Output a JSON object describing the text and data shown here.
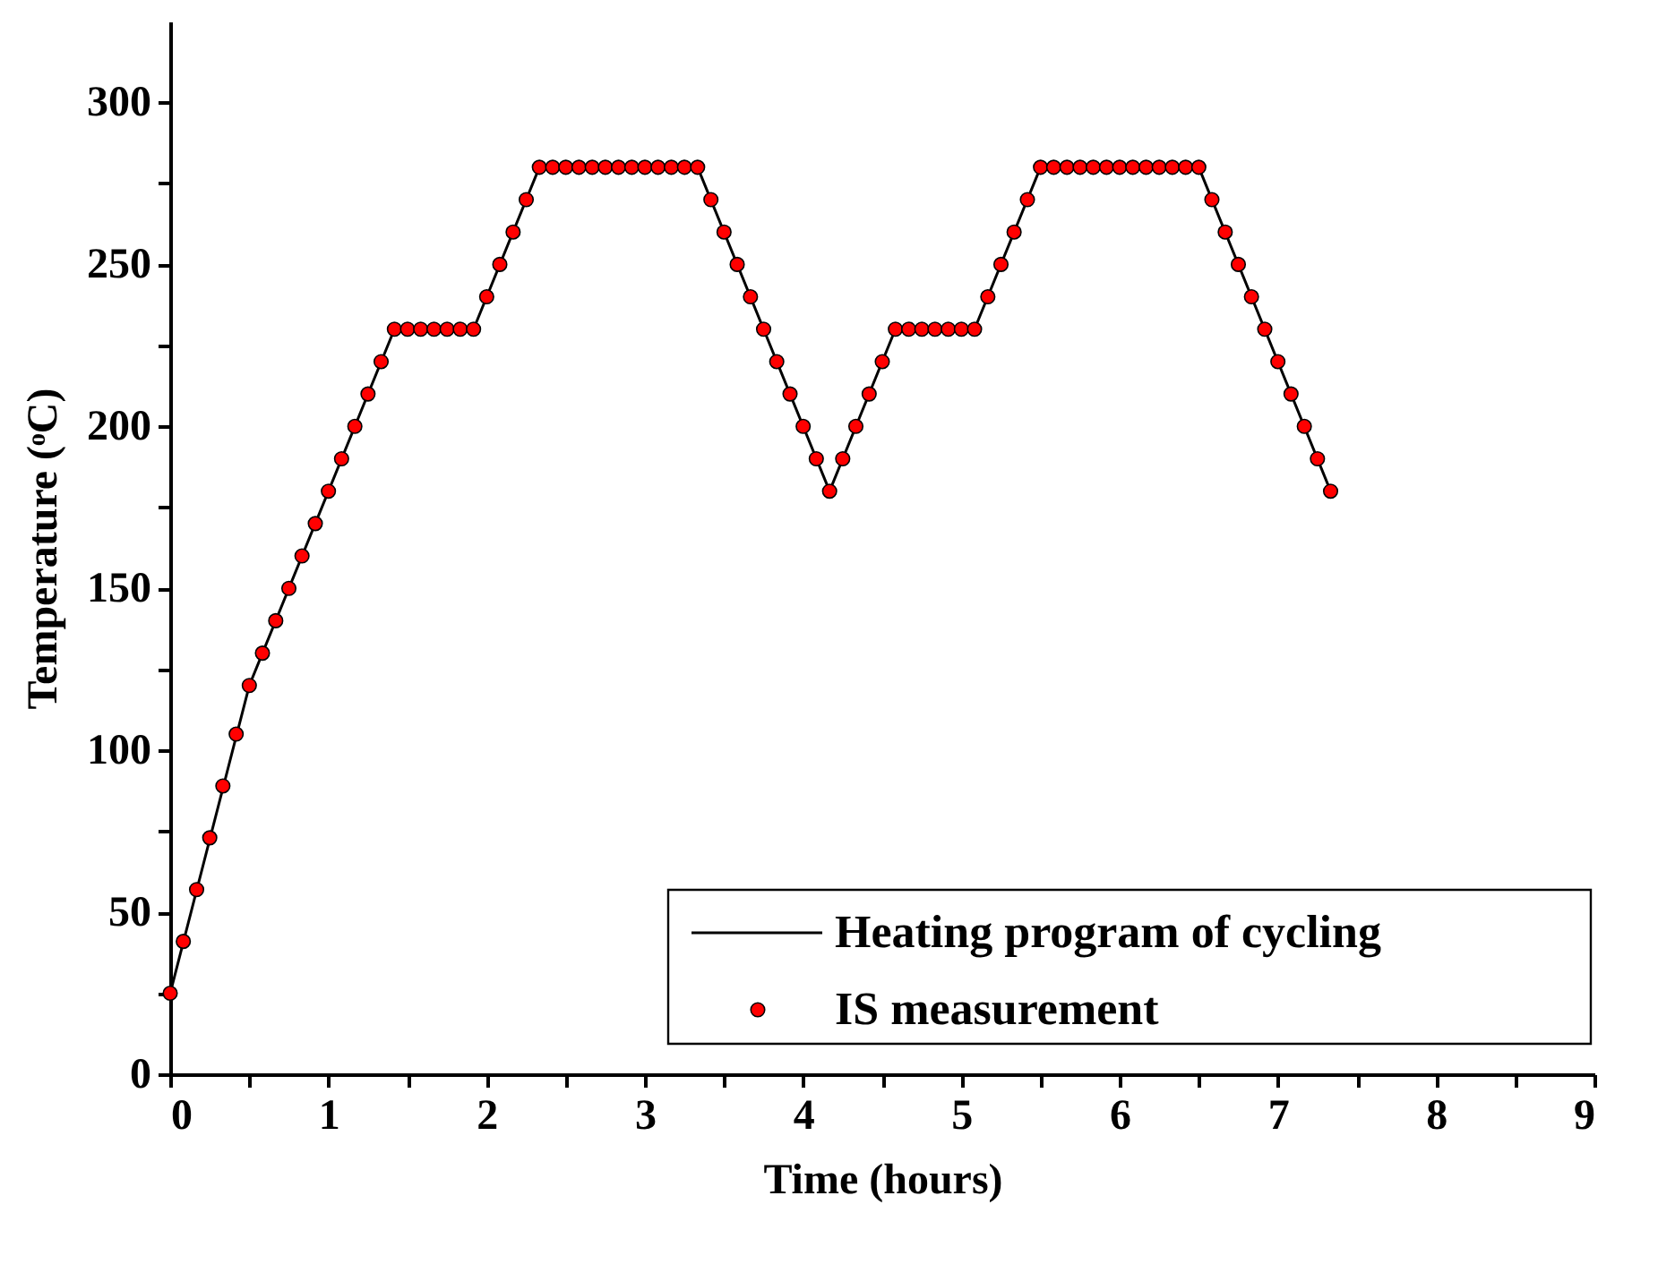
{
  "chart_data": {
    "type": "line",
    "xlabel": "Time (hours)",
    "ylabel": "Temperature (ᵒC)",
    "xlim": [
      0,
      9
    ],
    "ylim": [
      0,
      325
    ],
    "xticks": [
      0,
      {
        "value": 0.5,
        "label": null
      },
      1,
      {
        "value": 1.5,
        "label": null
      },
      2,
      {
        "value": 2.5,
        "label": null
      },
      3,
      {
        "value": 3.5,
        "label": null
      },
      4,
      {
        "value": 4.5,
        "label": null
      },
      5,
      {
        "value": 5.5,
        "label": null
      },
      6,
      {
        "value": 6.5,
        "label": null
      },
      7,
      {
        "value": 7.5,
        "label": null
      },
      8,
      {
        "value": 8.5,
        "label": null
      },
      9
    ],
    "yticks": [
      0,
      {
        "value": 25,
        "label": null
      },
      50,
      {
        "value": 75,
        "label": null
      },
      100,
      {
        "value": 125,
        "label": null
      },
      150,
      {
        "value": 175,
        "label": null
      },
      200,
      {
        "value": 225,
        "label": null
      },
      250,
      {
        "value": 275,
        "label": null
      },
      300
    ],
    "grid": false,
    "legend": "bottom right",
    "series": [
      {
        "name": "Heating program of cycling",
        "color": "#000000",
        "line_style": "solid",
        "x": [
          0,
          0.5,
          1.417,
          1.917,
          2.333,
          3.333,
          4.167,
          4.583,
          5.083,
          5.5,
          6.5,
          7.333
        ],
        "values": [
          25,
          120,
          230,
          230,
          280,
          280,
          180,
          230,
          230,
          280,
          280,
          180
        ]
      },
      {
        "name": "IS measurement",
        "type": "scatter",
        "color": "#ff0000",
        "marker": "circle",
        "x": [
          0,
          0.083,
          0.167,
          0.25,
          0.333,
          0.417,
          0.5,
          0.583,
          0.667,
          0.75,
          0.833,
          0.917,
          1,
          1.083,
          1.167,
          1.25,
          1.333,
          1.417,
          1.5,
          1.583,
          1.667,
          1.75,
          1.833,
          1.917,
          2,
          2.083,
          2.167,
          2.25,
          2.333,
          2.417,
          2.5,
          2.583,
          2.667,
          2.75,
          2.833,
          2.917,
          3,
          3.083,
          3.167,
          3.25,
          3.333,
          3.417,
          3.5,
          3.583,
          3.667,
          3.75,
          3.833,
          3.917,
          4,
          4.083,
          4.167,
          4.25,
          4.333,
          4.417,
          4.5,
          4.583,
          4.667,
          4.75,
          4.833,
          4.917,
          5,
          5.083,
          5.167,
          5.25,
          5.333,
          5.417,
          5.5,
          5.583,
          5.667,
          5.75,
          5.833,
          5.917,
          6,
          6.083,
          6.167,
          6.25,
          6.333,
          6.417,
          6.5,
          6.583,
          6.667,
          6.75,
          6.833,
          6.917,
          7,
          7.083,
          7.167,
          7.25,
          7.333
        ],
        "values": [
          25,
          41,
          57,
          73,
          89,
          105,
          120,
          130,
          140,
          150,
          160,
          170,
          180,
          190,
          200,
          210,
          220,
          230,
          230,
          230,
          230,
          230,
          230,
          230,
          240,
          250,
          260,
          270,
          280,
          280,
          280,
          280,
          280,
          280,
          280,
          280,
          280,
          280,
          280,
          280,
          280,
          270,
          260,
          250,
          240,
          230,
          220,
          210,
          200,
          190,
          180,
          190,
          200,
          210,
          220,
          230,
          230,
          230,
          230,
          230,
          230,
          230,
          240,
          250,
          260,
          270,
          280,
          280,
          280,
          280,
          280,
          280,
          280,
          280,
          280,
          280,
          280,
          280,
          280,
          270,
          260,
          250,
          240,
          230,
          220,
          210,
          200,
          190,
          180
        ]
      }
    ]
  }
}
